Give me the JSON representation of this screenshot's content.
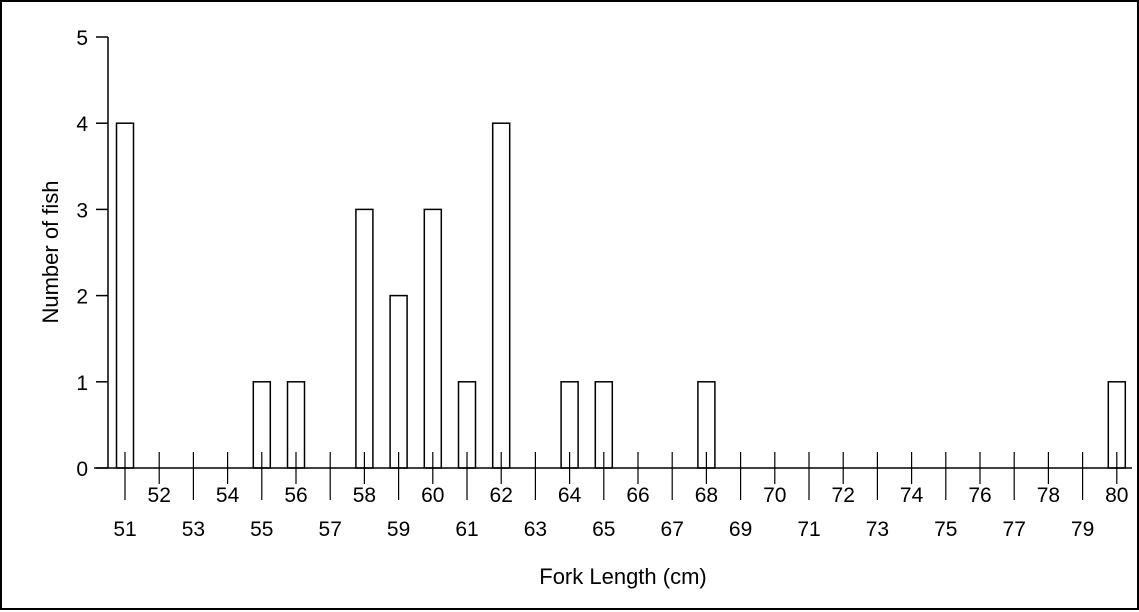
{
  "chart_data": {
    "type": "bar",
    "title": "",
    "xlabel": "Fork Length (cm)",
    "ylabel": "Number of fish",
    "ylim": [
      0,
      5
    ],
    "yticks": [
      0,
      1,
      2,
      3,
      4,
      5
    ],
    "categories": [
      "51",
      "52",
      "53",
      "54",
      "55",
      "56",
      "57",
      "58",
      "59",
      "60",
      "61",
      "62",
      "63",
      "64",
      "65",
      "66",
      "67",
      "68",
      "69",
      "70",
      "71",
      "72",
      "73",
      "74",
      "75",
      "76",
      "77",
      "78",
      "79",
      "80"
    ],
    "values": [
      4,
      0,
      0,
      0,
      1,
      1,
      0,
      3,
      2,
      3,
      1,
      4,
      0,
      1,
      1,
      0,
      0,
      1,
      0,
      0,
      0,
      0,
      0,
      0,
      0,
      0,
      0,
      0,
      0,
      1
    ],
    "tick_labels_upper": [
      "52",
      "54",
      "56",
      "58",
      "60",
      "62",
      "64",
      "66",
      "68",
      "70",
      "72",
      "74",
      "76",
      "78",
      "80"
    ],
    "tick_labels_lower": [
      "51",
      "53",
      "55",
      "57",
      "59",
      "61",
      "63",
      "65",
      "67",
      "69",
      "71",
      "73",
      "75",
      "77",
      "79"
    ],
    "grid": false,
    "legend": "none",
    "bar_fill": "#ffffff",
    "bar_stroke": "#000000",
    "axis_color": "#000000"
  }
}
